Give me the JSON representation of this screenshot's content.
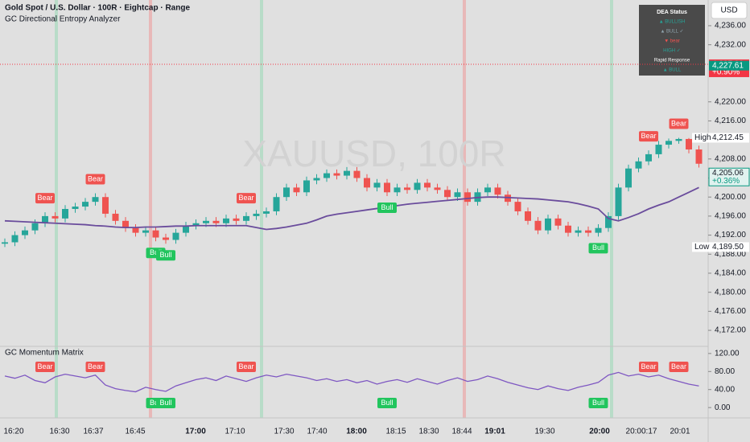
{
  "header": {
    "title": "Gold Spot / U.S. Dollar · 100R · Eightcap · Range",
    "indicator": "GC Directional Entropy Analyzer",
    "watermark": "XAUUSD, 100R",
    "currency": "USD"
  },
  "status_box": {
    "title": "DEA Status",
    "rows": [
      "▲ BULLISH",
      "▲ BULL ✓",
      "▼ bear",
      "HIGH ✓",
      "Rapid Response",
      "▲ BULL"
    ]
  },
  "chart_data": [
    {
      "type": "candlestick",
      "open": [
        4190.2,
        4190.5,
        4192,
        4193,
        4194.5,
        4196,
        4195.5,
        4197.5,
        4198,
        4199,
        4200,
        4196.5,
        4195,
        4193.5,
        4192.5,
        4193,
        4191.5,
        4191,
        4192.5,
        4194,
        4194.5,
        4195,
        4194.5,
        4195.5,
        4195,
        4196,
        4196.5,
        4197,
        4200,
        4202,
        4201,
        4203.5,
        4204,
        4205,
        4204.5,
        4205.5,
        4204,
        4202,
        4203,
        4201,
        4202,
        4201.5,
        4203,
        4202,
        4201.5,
        4200,
        4201,
        4199,
        4201,
        4202,
        4200.5,
        4199,
        4197,
        4195,
        4193,
        4195.5,
        4194,
        4192.5,
        4193,
        4192.5,
        4193.5,
        4196,
        4202,
        4206,
        4207.5,
        4209,
        4211,
        4211.8,
        4212.2,
        4210
      ],
      "high": [
        4191.3,
        4192.8,
        4193.8,
        4195.3,
        4196.8,
        4196.8,
        4198.3,
        4198.8,
        4199.8,
        4200.8,
        4200.8,
        4197.3,
        4195.8,
        4194.3,
        4193.8,
        4193.8,
        4192.3,
        4193.3,
        4194.8,
        4195.3,
        4195.8,
        4195.8,
        4196.3,
        4196.3,
        4196.8,
        4197.3,
        4197.8,
        4200.8,
        4202.8,
        4202.8,
        4204.3,
        4204.8,
        4205.8,
        4205.8,
        4206.3,
        4206.3,
        4204.8,
        4203.8,
        4203.8,
        4202.8,
        4202.8,
        4203.8,
        4203.8,
        4202.8,
        4202.3,
        4201.8,
        4201.8,
        4201.8,
        4202.8,
        4202.8,
        4201.3,
        4199.8,
        4197.8,
        4195.8,
        4196.3,
        4196.3,
        4194.8,
        4193.8,
        4193.8,
        4194.3,
        4196.8,
        4202.8,
        4206.8,
        4208.3,
        4209.8,
        4211.8,
        4212.3,
        4212.45,
        4212.4,
        4210.8
      ],
      "low": [
        4189.5,
        4189.7,
        4191.2,
        4192.2,
        4193.7,
        4194.7,
        4194.7,
        4196.7,
        4197.2,
        4198.2,
        4195.7,
        4194.2,
        4192.7,
        4191.7,
        4191.7,
        4190.7,
        4190.2,
        4190.2,
        4191.7,
        4193.2,
        4193.7,
        4193.7,
        4193.7,
        4194.2,
        4194.2,
        4195.2,
        4195.7,
        4196.2,
        4199.2,
        4200.2,
        4200.2,
        4202.7,
        4203.2,
        4203.7,
        4203.7,
        4203.2,
        4201.2,
        4201.2,
        4200.2,
        4200.2,
        4200.7,
        4200.7,
        4201.2,
        4200.7,
        4199.2,
        4199.2,
        4198.2,
        4198.2,
        4200.2,
        4199.7,
        4198.2,
        4196.2,
        4194.2,
        4192.2,
        4192.2,
        4193.2,
        4191.7,
        4191.7,
        4191.7,
        4191.7,
        4192.7,
        4195.2,
        4201.2,
        4205.2,
        4206.7,
        4208.2,
        4210.2,
        4211.2,
        4209.2,
        4206.2
      ],
      "close": [
        4190.5,
        4192,
        4193,
        4194.5,
        4196,
        4195.5,
        4197.5,
        4198,
        4199,
        4200,
        4196.5,
        4195,
        4193.5,
        4192.5,
        4193,
        4191.5,
        4191,
        4192.5,
        4194,
        4194.5,
        4195,
        4194.5,
        4195.5,
        4195,
        4196,
        4196.5,
        4197,
        4200,
        4202,
        4201,
        4203.5,
        4204,
        4205,
        4204.5,
        4205.5,
        4204,
        4202,
        4203,
        4201,
        4202,
        4201.5,
        4203,
        4202,
        4201.5,
        4200,
        4201,
        4199,
        4201,
        4202,
        4200.5,
        4199,
        4197,
        4195,
        4193,
        4195.5,
        4194,
        4192.5,
        4193,
        4192.5,
        4193.5,
        4196,
        4202,
        4206,
        4207.5,
        4209,
        4211,
        4211.8,
        4212.2,
        4210,
        4207
      ],
      "up_color": "#26a69a",
      "down_color": "#ef5350",
      "series": [
        {
          "color": "#6a4c9c",
          "values": [
            4195,
            4194.9,
            4194.8,
            4194.7,
            4194.6,
            4194.5,
            4194.4,
            4194.3,
            4194.2,
            4194,
            4193.9,
            4193.7,
            4193.6,
            4193.6,
            4193.7,
            4193.7,
            4193.8,
            4193.9,
            4193.9,
            4194,
            4194,
            4194,
            4194,
            4194,
            4194,
            4193.6,
            4193.2,
            4193.4,
            4193.7,
            4194.1,
            4194.5,
            4195.2,
            4196,
            4196.4,
            4196.7,
            4197,
            4197.3,
            4197.6,
            4197.9,
            4198.2,
            4198.5,
            4198.7,
            4198.9,
            4199.1,
            4199.3,
            4199.5,
            4199.7,
            4199.9,
            4200,
            4200,
            4199.9,
            4199.8,
            4199.7,
            4199.6,
            4199.4,
            4199.2,
            4199,
            4198.6,
            4198.1,
            4197.5,
            4195.5,
            4195,
            4195.7,
            4196.5,
            4197.5,
            4198.3,
            4199,
            4200,
            4201,
            4202
          ]
        }
      ],
      "annotations": [
        "Bear",
        "Bear",
        "Bull",
        "Bull",
        "Bear",
        "Bull",
        "Bull",
        "Bear",
        "Bear"
      ],
      "price_labels": [
        {
          "value": 4227.9,
          "label": "4,227.90",
          "sub": "+0.90%",
          "color": "#f23645"
        },
        {
          "value": 4227.61,
          "label": "4,227.61",
          "color": "#089981"
        },
        {
          "value": 4212.45,
          "label": "4,212.45",
          "tag": "High",
          "color": "#ffffff"
        },
        {
          "value": 4205.06,
          "label": "4,205.06",
          "sub": "+0.36%",
          "color": "#e0f2ef"
        },
        {
          "value": 4189.5,
          "label": "4,189.50",
          "tag": "Low",
          "color": "#ffffff"
        }
      ],
      "ylim": [
        4168.8,
        4241.4
      ],
      "yticks": [
        {
          "value": 4236,
          "label": "4,236.00"
        },
        {
          "value": 4232,
          "label": "4,232.00"
        },
        {
          "value": 4220,
          "label": "4,220.00"
        },
        {
          "value": 4216,
          "label": "4,216.00"
        },
        {
          "value": 4208,
          "label": "4,208.00"
        },
        {
          "value": 4204,
          "label": "4,204.00"
        },
        {
          "value": 4200,
          "label": "4,200.00"
        },
        {
          "value": 4196,
          "label": "4,196.00"
        },
        {
          "value": 4192,
          "label": "4,192.00"
        },
        {
          "value": 4188,
          "label": "4,188.00"
        },
        {
          "value": 4184,
          "label": "4,184.00"
        },
        {
          "value": 4180,
          "label": "4,180.00"
        },
        {
          "value": 4176,
          "label": "4,176.00"
        },
        {
          "value": 4172,
          "label": "4,172.00"
        }
      ]
    },
    {
      "type": "line",
      "title": "GC Momentum Matrix",
      "series": [
        {
          "color": "#7e57c2",
          "values": [
            70,
            65,
            72,
            60,
            55,
            68,
            74,
            70,
            66,
            72,
            50,
            42,
            38,
            35,
            45,
            40,
            36,
            48,
            55,
            62,
            66,
            60,
            70,
            64,
            58,
            66,
            72,
            68,
            74,
            70,
            66,
            60,
            64,
            58,
            62,
            55,
            60,
            52,
            58,
            62,
            56,
            64,
            58,
            52,
            60,
            66,
            58,
            62,
            70,
            64,
            56,
            50,
            44,
            40,
            48,
            42,
            38,
            45,
            50,
            56,
            72,
            78,
            70,
            74,
            68,
            72,
            64,
            58,
            52,
            48
          ]
        }
      ],
      "annotations": [
        "Bear",
        "Bear",
        "Bull",
        "Bull",
        "Bear",
        "Bull",
        "Bull",
        "Bear",
        "Bear"
      ],
      "ylim": [
        -14,
        134
      ],
      "yticks": [
        {
          "value": 120,
          "label": "120.00"
        },
        {
          "value": 80,
          "label": "80.00"
        },
        {
          "value": 40,
          "label": "40.00"
        },
        {
          "value": 0,
          "label": "0.00"
        }
      ]
    }
  ],
  "time_axis": [
    "16:20",
    "16:30",
    "16:37",
    "16:45",
    "17:00",
    "17:10",
    "17:30",
    "17:40",
    "18:00",
    "18:15",
    "18:30",
    "18:44",
    "19:01",
    "19:30",
    "20:00",
    "20:00:17",
    "20:01"
  ]
}
